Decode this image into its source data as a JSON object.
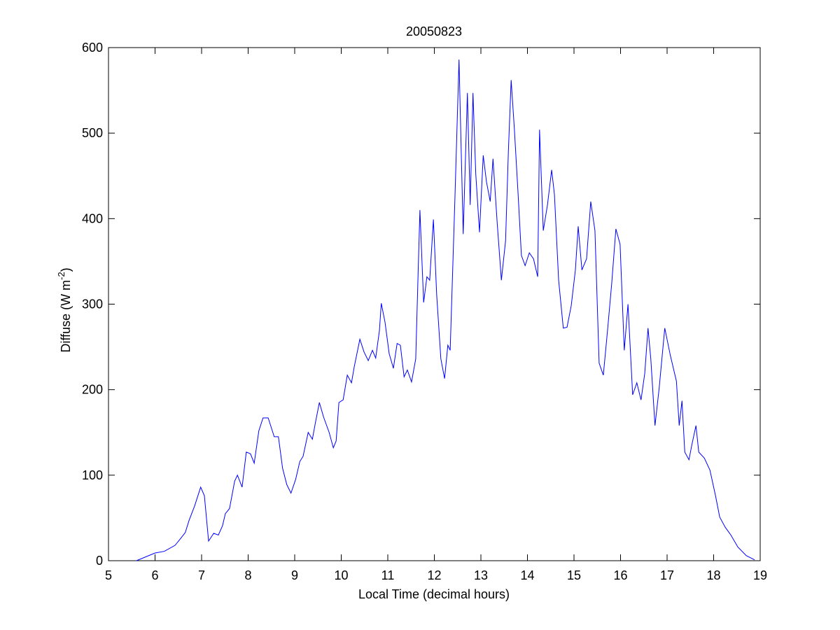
{
  "chart_data": {
    "type": "line",
    "title": "20050823",
    "xlabel": "Local Time (decimal hours)",
    "ylabel": {
      "text": "Diffuse (W m",
      "superscript": "-2",
      "suffix": ")"
    },
    "xlim": [
      5,
      19
    ],
    "xticks": [
      5,
      6,
      7,
      8,
      9,
      10,
      11,
      12,
      13,
      14,
      15,
      16,
      17,
      18,
      19
    ],
    "ylim": [
      0,
      600
    ],
    "yticks": [
      0,
      100,
      200,
      300,
      400,
      500,
      600
    ],
    "grid": false,
    "series": [
      {
        "color": "#0000ff",
        "x": [
          5.6,
          6.0,
          6.2,
          6.43,
          6.55,
          6.65,
          6.73,
          6.85,
          6.98,
          7.06,
          7.15,
          7.26,
          7.36,
          7.45,
          7.51,
          7.6,
          7.71,
          7.77,
          7.87,
          7.96,
          8.05,
          8.13,
          8.23,
          8.32,
          8.43,
          8.56,
          8.65,
          8.74,
          8.83,
          8.92,
          9.02,
          9.11,
          9.18,
          9.29,
          9.38,
          9.44,
          9.53,
          9.62,
          9.74,
          9.83,
          9.89,
          9.95,
          10.04,
          10.13,
          10.22,
          10.28,
          10.4,
          10.49,
          10.58,
          10.67,
          10.74,
          10.82,
          10.86,
          10.94,
          11.03,
          11.12,
          11.2,
          11.27,
          11.35,
          11.42,
          11.51,
          11.6,
          11.66,
          11.69,
          11.77,
          11.84,
          11.9,
          11.98,
          12.05,
          12.14,
          12.22,
          12.29,
          12.34,
          12.44,
          12.53,
          12.62,
          12.71,
          12.77,
          12.83,
          12.89,
          12.97,
          13.05,
          13.12,
          13.2,
          13.26,
          13.35,
          13.44,
          13.53,
          13.59,
          13.65,
          13.72,
          13.8,
          13.87,
          13.95,
          14.04,
          14.13,
          14.22,
          14.26,
          14.34,
          14.43,
          14.52,
          14.58,
          14.67,
          14.77,
          14.85,
          14.94,
          15.03,
          15.09,
          15.17,
          15.27,
          15.36,
          15.45,
          15.54,
          15.63,
          15.72,
          15.81,
          15.9,
          15.99,
          16.08,
          16.16,
          16.26,
          16.35,
          16.44,
          16.52,
          16.59,
          16.65,
          16.74,
          16.83,
          16.95,
          17.07,
          17.2,
          17.26,
          17.32,
          17.38,
          17.47,
          17.53,
          17.62,
          17.68,
          17.8,
          17.92,
          18.04,
          18.13,
          18.25,
          18.37,
          18.52,
          18.7,
          18.88
        ],
        "values": [
          0,
          9,
          11,
          18,
          26,
          33,
          47,
          64,
          86,
          76,
          23,
          32,
          30,
          41,
          55,
          61,
          93,
          100,
          86,
          127,
          125,
          114,
          152,
          167,
          167,
          145,
          145,
          108,
          89,
          79,
          95,
          116,
          122,
          150,
          142,
          160,
          185,
          168,
          150,
          132,
          140,
          185,
          188,
          217,
          208,
          227,
          259,
          244,
          234,
          246,
          237,
          269,
          301,
          279,
          242,
          225,
          254,
          252,
          215,
          223,
          209,
          236,
          353,
          410,
          302,
          332,
          328,
          399,
          311,
          236,
          213,
          252,
          246,
          420,
          586,
          382,
          547,
          416,
          547,
          452,
          384,
          474,
          443,
          420,
          470,
          395,
          328,
          374,
          478,
          562,
          504,
          428,
          357,
          345,
          360,
          353,
          332,
          504,
          386,
          416,
          457,
          428,
          328,
          272,
          273,
          298,
          340,
          391,
          340,
          353,
          420,
          386,
          231,
          217,
          269,
          324,
          388,
          370,
          246,
          300,
          194,
          208,
          188,
          219,
          272,
          236,
          158,
          202,
          272,
          240,
          210,
          158,
          187,
          127,
          118,
          135,
          158,
          127,
          120,
          106,
          76,
          51,
          39,
          30,
          16,
          6,
          1
        ]
      }
    ]
  }
}
